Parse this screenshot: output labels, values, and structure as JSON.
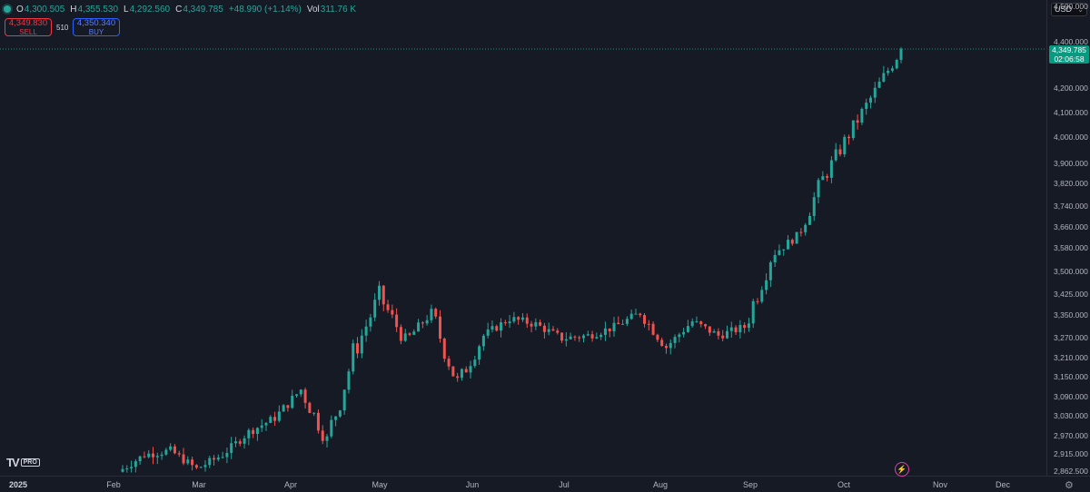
{
  "legend": {
    "open_label": "O",
    "open": "4,300.505",
    "high_label": "H",
    "high": "4,355.530",
    "low_label": "L",
    "low": "4,292.560",
    "close_label": "C",
    "close": "4,349.785",
    "change": "+48.990 (+1.14%)",
    "vol_label": "Vol",
    "vol": "311.76 K"
  },
  "trade": {
    "sell_price": "4,349.830",
    "sell_label": "SELL",
    "spread": "510",
    "buy_price": "4,350.340",
    "buy_label": "BUY"
  },
  "currency": "USD",
  "price_ticks": [
    "4,500.000",
    "4,400.000",
    "4,200.000",
    "4,100.000",
    "4,000.000",
    "3,900.000",
    "3,820.000",
    "3,740.000",
    "3,660.000",
    "3,580.000",
    "3,500.000",
    "3,425.000",
    "3,350.000",
    "3,270.000",
    "3,210.000",
    "3,150.000",
    "3,090.000",
    "3,030.000",
    "2,970.000",
    "2,915.000",
    "2,862.500"
  ],
  "current_price": {
    "value": "4,349.785",
    "countdown": "02:06:58"
  },
  "time_ticks": [
    "2025",
    "Feb",
    "Mar",
    "Apr",
    "May",
    "Jun",
    "Jul",
    "Aug",
    "Sep",
    "Oct",
    "Nov",
    "Dec"
  ],
  "brand": {
    "mark": "TV",
    "badge": "PRO"
  },
  "colors": {
    "up": "#26a69a",
    "down": "#ef5350",
    "background": "#161a25",
    "price_line": "#089981"
  },
  "icons": {
    "legend_status": "status-dot-icon",
    "bolt": "lightning-icon",
    "settings": "gear-icon",
    "currency_chevron": "chevron-down-icon"
  },
  "chart_data": {
    "type": "line",
    "style": "candlestick",
    "x": [
      "Feb",
      "Feb",
      "Feb",
      "Mar",
      "Mar",
      "Mar",
      "Apr",
      "Apr",
      "Apr",
      "Apr",
      "Apr",
      "May",
      "May",
      "May",
      "May",
      "Jun",
      "Jun",
      "Jun",
      "Jul",
      "Jul",
      "Jul",
      "Aug",
      "Aug",
      "Aug",
      "Sep",
      "Sep",
      "Sep",
      "Oct",
      "Oct",
      "Oct",
      "Oct"
    ],
    "close": [
      2860,
      2920,
      2935,
      2870,
      2920,
      3000,
      3050,
      3150,
      2970,
      3270,
      3480,
      3320,
      3420,
      3170,
      3340,
      3400,
      3380,
      3330,
      3340,
      3370,
      3420,
      3300,
      3390,
      3340,
      3370,
      3620,
      3690,
      3890,
      4050,
      4200,
      4349.785
    ],
    "ylim": [
      2862.5,
      4500
    ],
    "grid": false,
    "last": 4349.785
  }
}
